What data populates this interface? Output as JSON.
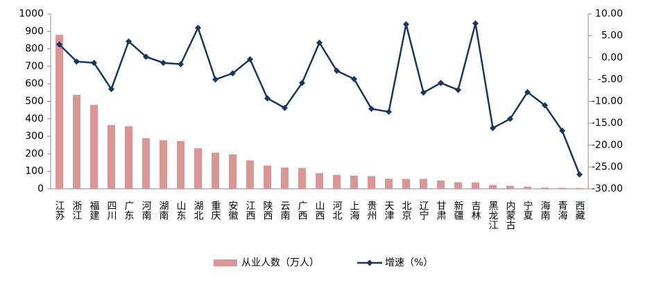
{
  "chart_data": {
    "type": "combo",
    "categories": [
      "江苏",
      "浙江",
      "福建",
      "四川",
      "广东",
      "河南",
      "湖南",
      "山东",
      "湖北",
      "重庆",
      "安徽",
      "江西",
      "陕西",
      "云南",
      "广西",
      "山西",
      "河北",
      "上海",
      "贵州",
      "天津",
      "北京",
      "辽宁",
      "甘肃",
      "新疆",
      "吉林",
      "黑龙江",
      "内蒙古",
      "宁夏",
      "海南",
      "青海",
      "西藏"
    ],
    "series": [
      {
        "name": "从业人数（万人）",
        "type": "bar",
        "color": "#d99694",
        "values": [
          880,
          537,
          480,
          365,
          358,
          290,
          278,
          273,
          232,
          207,
          197,
          163,
          133,
          122,
          120,
          90,
          80,
          75,
          73,
          58,
          57,
          57,
          48,
          38,
          37,
          22,
          17,
          12,
          7,
          6,
          5
        ]
      },
      {
        "name": "增速（%）",
        "type": "line",
        "axis": "y2",
        "color": "#17375e",
        "values": [
          3.0,
          -0.9,
          -1.2,
          -7.2,
          3.7,
          0.2,
          -1.2,
          -1.5,
          6.8,
          -5.0,
          -3.6,
          -0.4,
          -9.3,
          -11.5,
          -5.8,
          3.4,
          -3.0,
          -4.9,
          -11.7,
          -12.4,
          7.6,
          -8.0,
          -5.8,
          -7.4,
          7.8,
          -16.1,
          -14.0,
          -7.9,
          -10.9,
          -16.7,
          -26.7
        ]
      }
    ],
    "ylim": [
      0,
      1000
    ],
    "yticks": [
      0,
      100,
      200,
      300,
      400,
      500,
      600,
      700,
      800,
      900,
      1000
    ],
    "y2lim": [
      -30,
      10
    ],
    "y2ticks": [
      {
        "value": -30,
        "label": "-30.00"
      },
      {
        "value": -25,
        "label": "-25.00"
      },
      {
        "value": -20,
        "label": "-20.00"
      },
      {
        "value": -15,
        "label": "-15.00"
      },
      {
        "value": -10,
        "label": "-10.00"
      },
      {
        "value": -5,
        "label": "-5.00"
      },
      {
        "value": 0,
        "label": "0.00"
      },
      {
        "value": 5,
        "label": "5.00"
      },
      {
        "value": 10,
        "label": "10.00"
      }
    ],
    "grid": false,
    "legend": "bottom"
  }
}
